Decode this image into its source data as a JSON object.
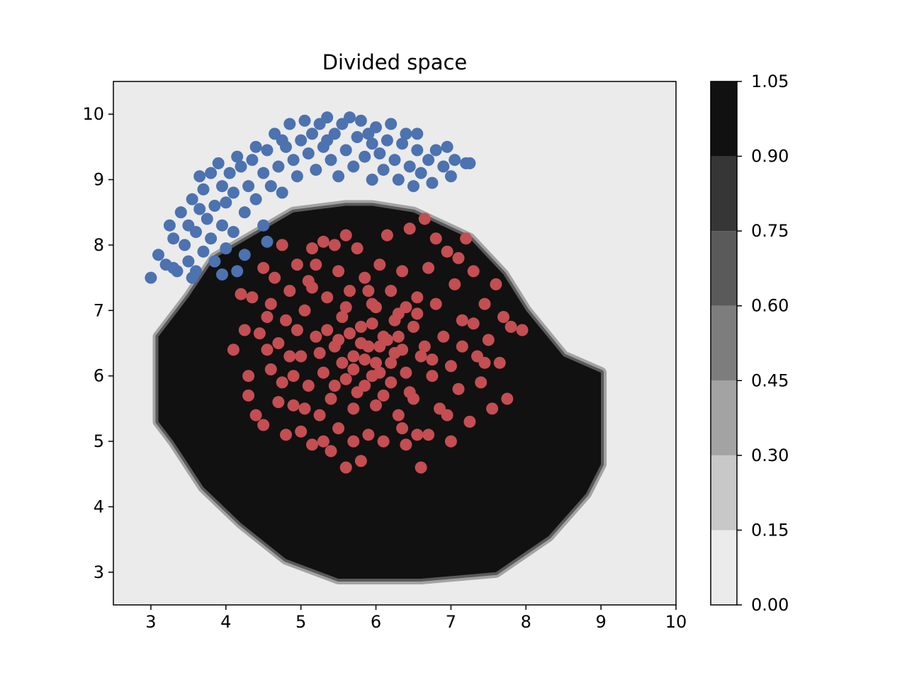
{
  "chart_data": {
    "type": "scatter",
    "title": "Divided space",
    "xlabel": "",
    "ylabel": "",
    "xlim": [
      2.5,
      10
    ],
    "ylim": [
      2.5,
      10.5
    ],
    "x_ticks": [
      "3",
      "4",
      "5",
      "6",
      "7",
      "8",
      "9",
      "10"
    ],
    "y_ticks": [
      "3",
      "4",
      "5",
      "6",
      "7",
      "8",
      "9",
      "10"
    ],
    "grid": false,
    "background_region": {
      "description": "contour fill of classifier output",
      "outside_level": 0.0,
      "inside_level": 1.0,
      "inside_polygon": [
        [
          5.6,
          8.6
        ],
        [
          5.95,
          8.6
        ],
        [
          6.5,
          8.5
        ],
        [
          7.25,
          8.1
        ],
        [
          7.7,
          7.55
        ],
        [
          8.0,
          7.0
        ],
        [
          8.5,
          6.3
        ],
        [
          9.0,
          6.05
        ],
        [
          9.0,
          4.65
        ],
        [
          8.8,
          4.2
        ],
        [
          8.3,
          3.55
        ],
        [
          7.6,
          3.0
        ],
        [
          6.6,
          2.9
        ],
        [
          5.5,
          2.9
        ],
        [
          4.8,
          3.2
        ],
        [
          4.2,
          3.75
        ],
        [
          3.7,
          4.3
        ],
        [
          3.3,
          5.0
        ],
        [
          3.1,
          5.3
        ],
        [
          3.1,
          6.6
        ],
        [
          3.5,
          7.2
        ],
        [
          3.85,
          7.8
        ],
        [
          4.3,
          8.1
        ],
        [
          4.9,
          8.5
        ]
      ],
      "color": "#111111"
    },
    "colorbar": {
      "ticks": [
        "0.00",
        "0.15",
        "0.30",
        "0.45",
        "0.60",
        "0.75",
        "0.90",
        "1.05"
      ],
      "levels": [
        0.0,
        0.15,
        0.3,
        0.45,
        0.6,
        0.75,
        0.9,
        1.05
      ],
      "colors": [
        "#ebebeb",
        "#c8c8c8",
        "#a3a3a3",
        "#7d7d7d",
        "#5a5a5a",
        "#363636",
        "#111111"
      ]
    },
    "series": [
      {
        "color": "#4c72b0",
        "points": [
          [
            3.0,
            7.5
          ],
          [
            3.1,
            7.85
          ],
          [
            3.2,
            7.7
          ],
          [
            3.25,
            8.3
          ],
          [
            3.3,
            8.1
          ],
          [
            3.35,
            7.6
          ],
          [
            3.4,
            8.5
          ],
          [
            3.45,
            8.0
          ],
          [
            3.5,
            7.75
          ],
          [
            3.5,
            8.3
          ],
          [
            3.55,
            8.7
          ],
          [
            3.6,
            7.6
          ],
          [
            3.6,
            8.2
          ],
          [
            3.65,
            8.55
          ],
          [
            3.7,
            7.9
          ],
          [
            3.7,
            8.85
          ],
          [
            3.75,
            8.4
          ],
          [
            3.8,
            8.1
          ],
          [
            3.8,
            9.1
          ],
          [
            3.85,
            7.75
          ],
          [
            3.85,
            8.6
          ],
          [
            3.9,
            9.25
          ],
          [
            3.95,
            8.3
          ],
          [
            3.95,
            8.9
          ],
          [
            4.0,
            7.95
          ],
          [
            4.0,
            8.65
          ],
          [
            4.05,
            9.1
          ],
          [
            4.1,
            8.2
          ],
          [
            4.1,
            8.8
          ],
          [
            4.15,
            7.6
          ],
          [
            4.2,
            9.2
          ],
          [
            4.25,
            8.5
          ],
          [
            4.3,
            8.9
          ],
          [
            4.35,
            9.3
          ],
          [
            4.4,
            8.7
          ],
          [
            4.4,
            9.5
          ],
          [
            4.5,
            9.1
          ],
          [
            4.5,
            8.3
          ],
          [
            4.55,
            9.45
          ],
          [
            4.6,
            8.9
          ],
          [
            4.65,
            9.7
          ],
          [
            4.7,
            9.2
          ],
          [
            4.75,
            8.8
          ],
          [
            4.8,
            9.5
          ],
          [
            4.85,
            9.85
          ],
          [
            4.9,
            9.3
          ],
          [
            4.95,
            9.05
          ],
          [
            5.0,
            9.6
          ],
          [
            5.05,
            9.9
          ],
          [
            5.1,
            9.4
          ],
          [
            5.15,
            9.7
          ],
          [
            5.2,
            9.15
          ],
          [
            5.25,
            9.85
          ],
          [
            5.3,
            9.5
          ],
          [
            5.35,
            9.95
          ],
          [
            5.4,
            9.3
          ],
          [
            5.45,
            9.7
          ],
          [
            5.5,
            9.05
          ],
          [
            5.55,
            9.85
          ],
          [
            5.6,
            9.45
          ],
          [
            5.65,
            9.95
          ],
          [
            5.7,
            9.2
          ],
          [
            5.75,
            9.65
          ],
          [
            5.8,
            9.9
          ],
          [
            5.85,
            9.35
          ],
          [
            5.9,
            9.7
          ],
          [
            5.95,
            9.0
          ],
          [
            6.0,
            9.8
          ],
          [
            6.05,
            9.4
          ],
          [
            6.1,
            9.15
          ],
          [
            6.15,
            9.6
          ],
          [
            6.2,
            9.85
          ],
          [
            6.25,
            9.3
          ],
          [
            6.3,
            9.0
          ],
          [
            6.35,
            9.55
          ],
          [
            6.4,
            9.7
          ],
          [
            6.45,
            9.2
          ],
          [
            6.5,
            8.9
          ],
          [
            6.55,
            9.45
          ],
          [
            6.6,
            9.1
          ],
          [
            6.7,
            9.3
          ],
          [
            6.75,
            8.95
          ],
          [
            6.8,
            9.45
          ],
          [
            6.9,
            9.2
          ],
          [
            6.95,
            9.5
          ],
          [
            7.0,
            9.05
          ],
          [
            7.05,
            9.3
          ],
          [
            7.2,
            9.25
          ],
          [
            7.25,
            9.25
          ],
          [
            3.3,
            7.65
          ],
          [
            3.55,
            7.5
          ],
          [
            3.95,
            7.55
          ],
          [
            4.25,
            7.85
          ],
          [
            4.55,
            8.05
          ],
          [
            3.65,
            9.05
          ],
          [
            4.15,
            9.35
          ],
          [
            4.75,
            9.6
          ],
          [
            5.35,
            9.6
          ],
          [
            5.95,
            9.55
          ],
          [
            6.55,
            9.7
          ]
        ]
      },
      {
        "color": "#c44e52",
        "points": [
          [
            4.1,
            6.4
          ],
          [
            4.2,
            7.25
          ],
          [
            4.25,
            6.7
          ],
          [
            4.3,
            6.0
          ],
          [
            4.3,
            5.7
          ],
          [
            4.35,
            7.2
          ],
          [
            4.4,
            5.4
          ],
          [
            4.45,
            6.65
          ],
          [
            4.5,
            7.65
          ],
          [
            4.5,
            5.25
          ],
          [
            4.55,
            6.9
          ],
          [
            4.6,
            6.1
          ],
          [
            4.65,
            7.5
          ],
          [
            4.7,
            5.6
          ],
          [
            4.7,
            6.5
          ],
          [
            4.75,
            8.0
          ],
          [
            4.8,
            5.1
          ],
          [
            4.8,
            6.85
          ],
          [
            4.85,
            7.3
          ],
          [
            4.9,
            6.0
          ],
          [
            4.9,
            5.55
          ],
          [
            4.95,
            7.7
          ],
          [
            5.0,
            5.15
          ],
          [
            5.0,
            6.3
          ],
          [
            5.05,
            7.0
          ],
          [
            5.1,
            5.85
          ],
          [
            5.1,
            7.45
          ],
          [
            5.15,
            4.95
          ],
          [
            5.15,
            7.95
          ],
          [
            5.2,
            6.6
          ],
          [
            5.25,
            5.4
          ],
          [
            5.3,
            8.05
          ],
          [
            5.3,
            6.05
          ],
          [
            5.35,
            7.2
          ],
          [
            5.4,
            4.85
          ],
          [
            5.4,
            5.65
          ],
          [
            5.45,
            6.45
          ],
          [
            5.5,
            7.6
          ],
          [
            5.5,
            5.2
          ],
          [
            5.55,
            6.9
          ],
          [
            5.6,
            4.6
          ],
          [
            5.6,
            5.95
          ],
          [
            5.6,
            8.15
          ],
          [
            5.65,
            7.3
          ],
          [
            5.7,
            6.3
          ],
          [
            5.7,
            5.5
          ],
          [
            5.75,
            7.95
          ],
          [
            5.8,
            4.7
          ],
          [
            5.8,
            6.75
          ],
          [
            5.85,
            5.85
          ],
          [
            5.85,
            7.5
          ],
          [
            5.9,
            6.45
          ],
          [
            5.9,
            5.1
          ],
          [
            5.95,
            7.1
          ],
          [
            6.0,
            6.2
          ],
          [
            6.0,
            5.55
          ],
          [
            6.05,
            7.7
          ],
          [
            6.1,
            6.6
          ],
          [
            6.1,
            5.0
          ],
          [
            6.15,
            8.15
          ],
          [
            6.2,
            5.9
          ],
          [
            6.2,
            7.3
          ],
          [
            6.25,
            6.35
          ],
          [
            6.3,
            5.4
          ],
          [
            6.3,
            6.95
          ],
          [
            6.35,
            7.6
          ],
          [
            6.4,
            6.05
          ],
          [
            6.4,
            4.95
          ],
          [
            6.45,
            8.25
          ],
          [
            6.5,
            5.65
          ],
          [
            6.5,
            6.75
          ],
          [
            6.55,
            7.2
          ],
          [
            6.6,
            4.6
          ],
          [
            6.6,
            6.3
          ],
          [
            6.65,
            8.4
          ],
          [
            6.7,
            5.1
          ],
          [
            6.7,
            7.65
          ],
          [
            6.75,
            6.0
          ],
          [
            6.8,
            7.1
          ],
          [
            6.85,
            5.5
          ],
          [
            6.9,
            6.6
          ],
          [
            6.95,
            7.9
          ],
          [
            7.0,
            5.0
          ],
          [
            7.0,
            6.15
          ],
          [
            7.05,
            7.4
          ],
          [
            7.1,
            5.8
          ],
          [
            7.15,
            6.85
          ],
          [
            7.2,
            8.1
          ],
          [
            7.25,
            5.3
          ],
          [
            7.3,
            7.6
          ],
          [
            7.35,
            6.3
          ],
          [
            7.4,
            5.9
          ],
          [
            7.45,
            7.1
          ],
          [
            7.5,
            6.55
          ],
          [
            7.55,
            5.5
          ],
          [
            7.6,
            7.4
          ],
          [
            7.65,
            6.2
          ],
          [
            7.7,
            6.9
          ],
          [
            7.75,
            5.65
          ],
          [
            7.8,
            6.75
          ],
          [
            7.95,
            6.7
          ],
          [
            5.8,
            6.5
          ],
          [
            5.95,
            6.8
          ],
          [
            6.05,
            6.05
          ],
          [
            6.15,
            6.55
          ],
          [
            5.7,
            6.1
          ],
          [
            6.25,
            6.85
          ],
          [
            5.65,
            6.65
          ],
          [
            6.35,
            6.4
          ],
          [
            5.55,
            6.2
          ],
          [
            5.9,
            7.3
          ],
          [
            6.45,
            5.75
          ],
          [
            5.35,
            6.7
          ],
          [
            6.55,
            6.95
          ],
          [
            5.75,
            5.75
          ],
          [
            6.2,
            6.2
          ],
          [
            5.45,
            5.85
          ],
          [
            6.65,
            6.45
          ],
          [
            5.25,
            6.35
          ],
          [
            6.0,
            7.05
          ],
          [
            6.1,
            5.7
          ],
          [
            5.5,
            6.55
          ],
          [
            6.3,
            6.6
          ],
          [
            5.85,
            6.25
          ],
          [
            6.05,
            6.45
          ],
          [
            5.95,
            6.0
          ],
          [
            5.6,
            7.05
          ],
          [
            6.4,
            7.05
          ],
          [
            4.6,
            7.1
          ],
          [
            4.85,
            6.3
          ],
          [
            5.2,
            7.7
          ],
          [
            5.45,
            8.0
          ],
          [
            6.8,
            8.1
          ],
          [
            7.1,
            7.8
          ],
          [
            7.3,
            6.8
          ],
          [
            6.95,
            5.4
          ],
          [
            6.35,
            5.2
          ],
          [
            5.7,
            5.0
          ],
          [
            5.05,
            5.5
          ],
          [
            4.75,
            5.9
          ],
          [
            4.95,
            6.7
          ],
          [
            5.3,
            5.0
          ],
          [
            6.55,
            5.1
          ],
          [
            7.15,
            6.45
          ],
          [
            7.45,
            6.2
          ],
          [
            5.15,
            7.35
          ],
          [
            4.55,
            6.4
          ],
          [
            6.75,
            6.25
          ]
        ]
      }
    ]
  }
}
